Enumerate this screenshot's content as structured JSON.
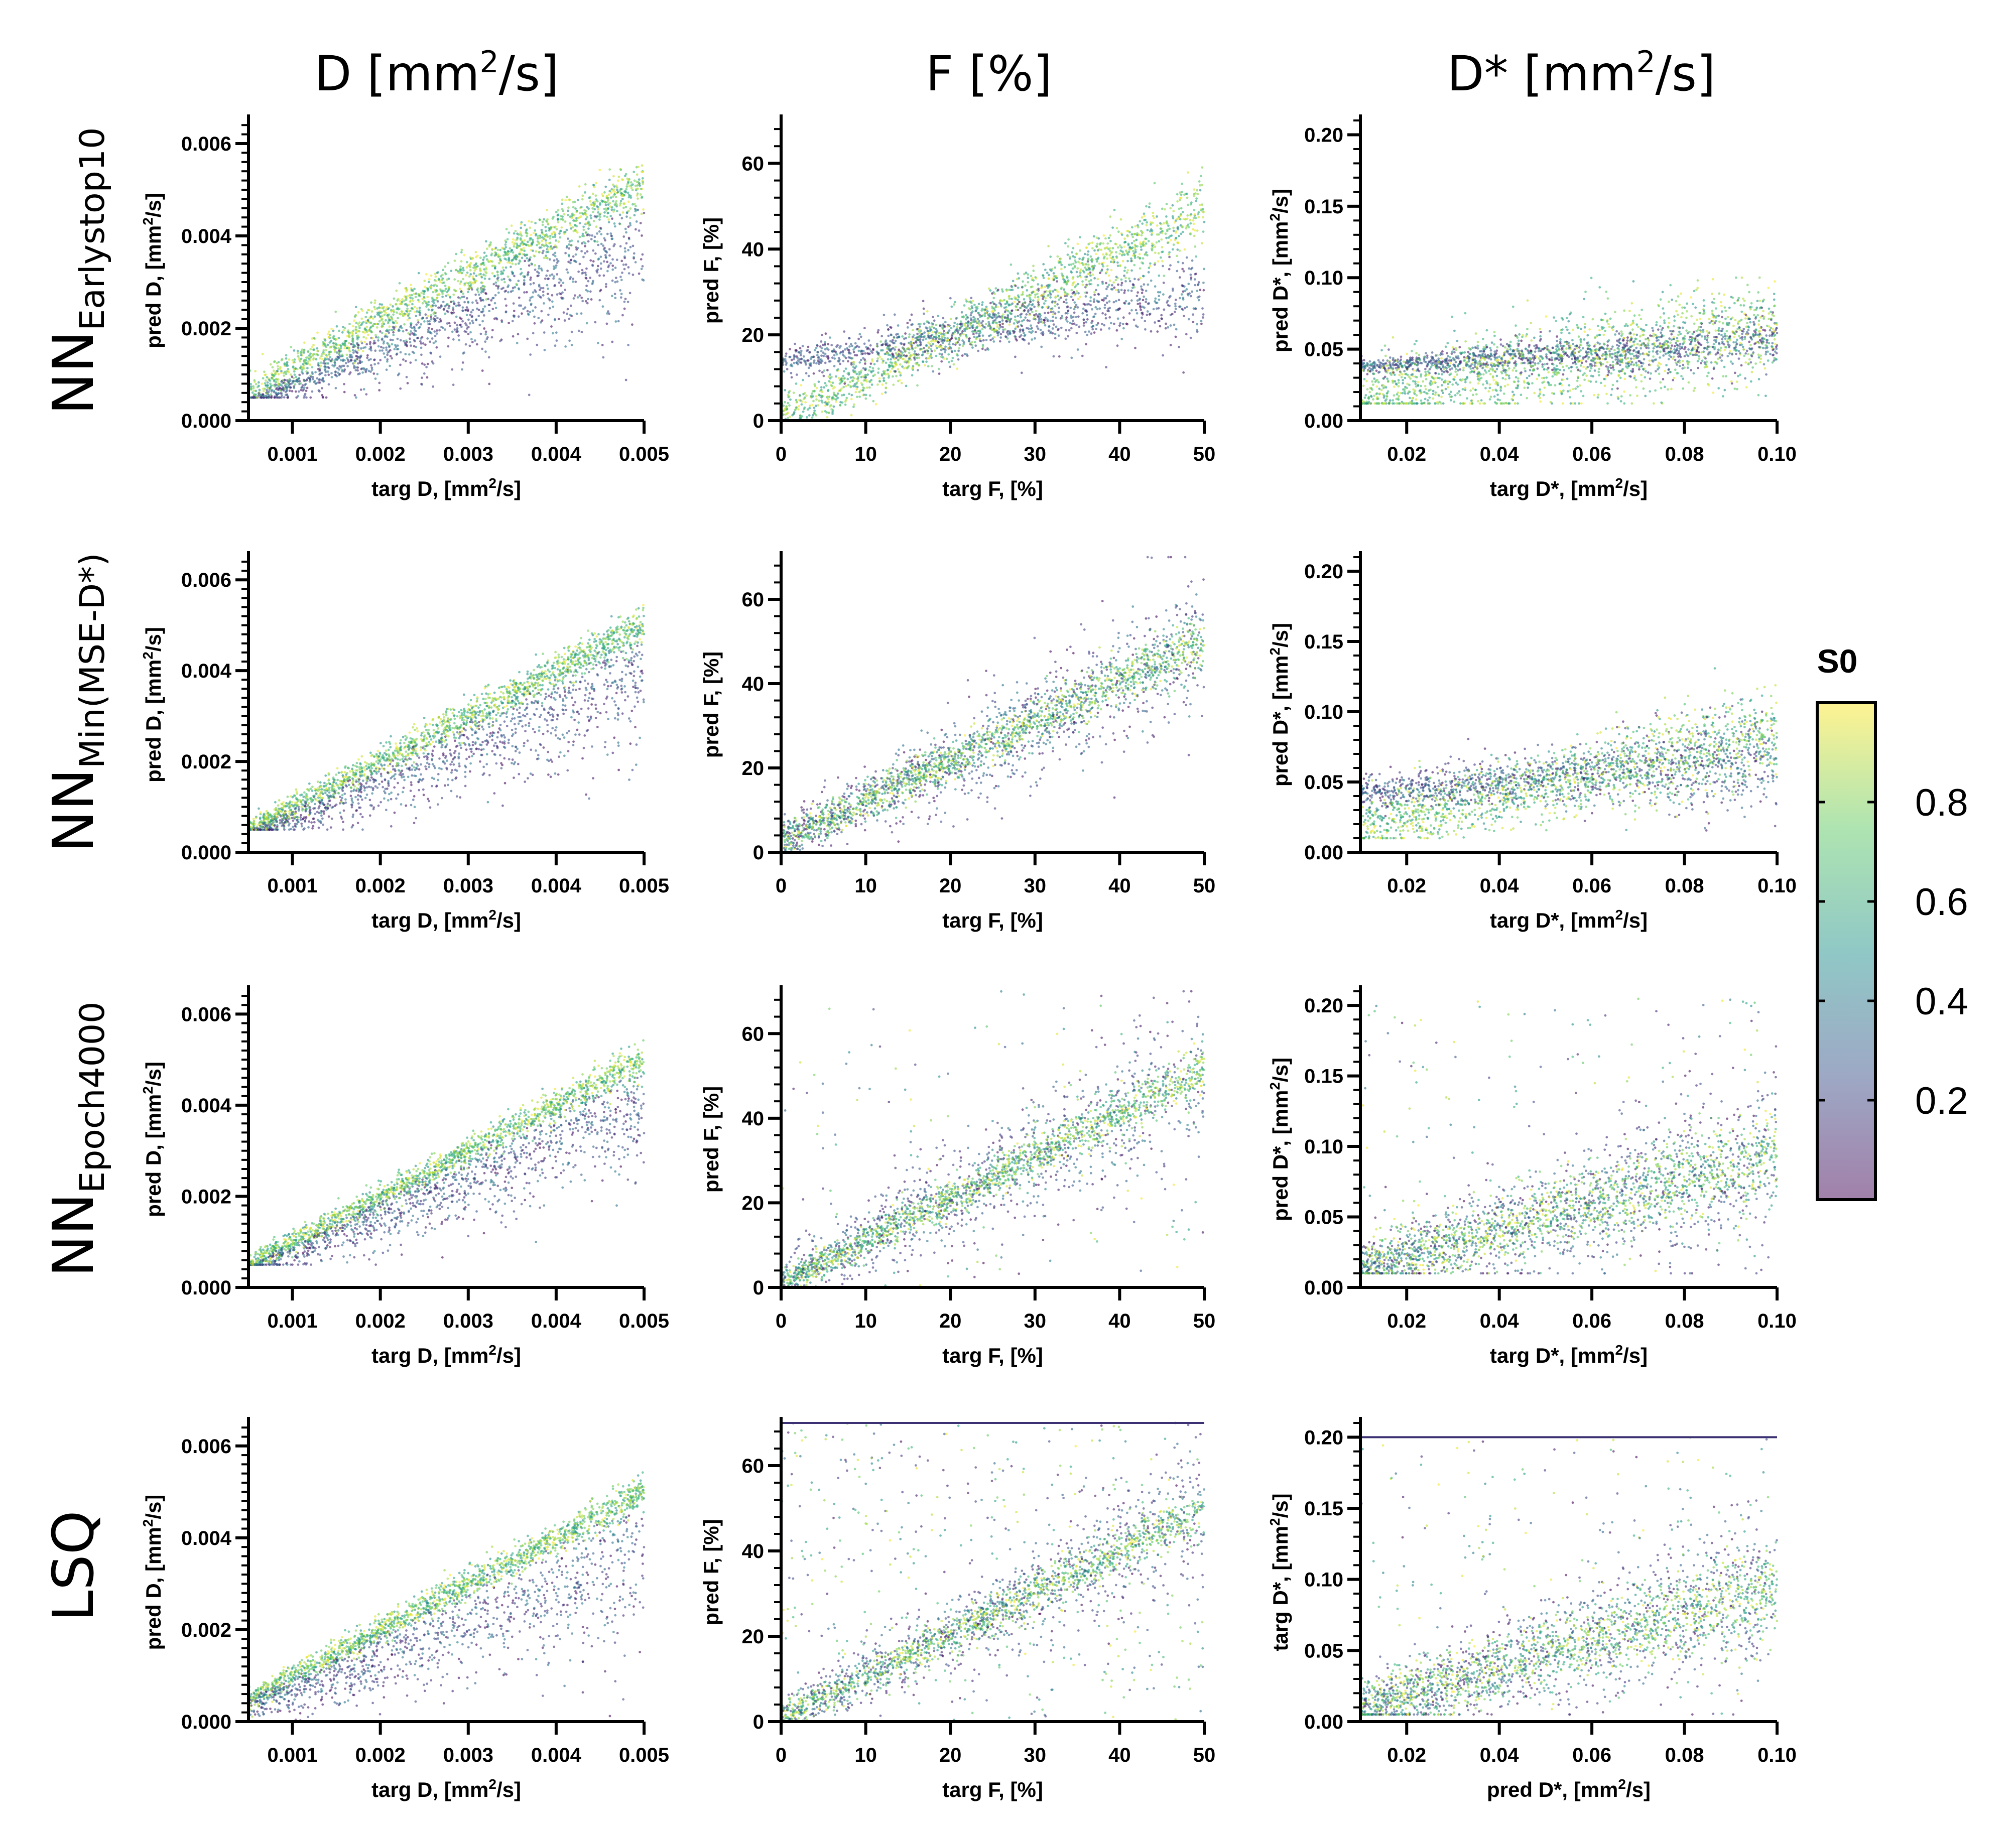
{
  "figure": {
    "column_titles": [
      {
        "main": "D [mm",
        "sup": "2",
        "tail": "/s]"
      },
      {
        "main": "F [%]",
        "sup": "",
        "tail": ""
      },
      {
        "main": "D* [mm",
        "sup": "2",
        "tail": "/s]"
      }
    ],
    "row_labels": [
      {
        "main": "NN",
        "sub": "Earlystop10"
      },
      {
        "main": "NN",
        "sub": "Min(MSE-D*)"
      },
      {
        "main": "NN",
        "sub": "Epoch4000"
      },
      {
        "main": "LSQ",
        "sub": ""
      }
    ],
    "colorbar": {
      "title": "S0",
      "range": [
        0.0,
        1.0
      ],
      "ticks": [
        0.2,
        0.4,
        0.6,
        0.8
      ],
      "tick_labels": [
        "0.2",
        "0.4",
        "0.6",
        "0.8"
      ],
      "colormap": "viridis (semi-transparent)",
      "colors": [
        "#440154",
        "#3b528b",
        "#21918c",
        "#5ec962",
        "#fde725"
      ]
    }
  },
  "chart_data": [
    {
      "type": "scatter",
      "row": 0,
      "col": 0,
      "method": "NN Earlystop10",
      "parameter": "D",
      "xlabel": {
        "pre": "targ D, [mm",
        "sup": "2",
        "post": "/s]"
      },
      "ylabel": {
        "pre": "pred D, [mm",
        "sup": "2",
        "post": "/s]"
      },
      "xlim": [
        0.0005,
        0.005
      ],
      "ylim": [
        0,
        0.0065
      ],
      "xticks": [
        0.001,
        0.002,
        0.003,
        0.004,
        0.005
      ],
      "xtick_labels": [
        "0.001",
        "0.002",
        "0.003",
        "0.004",
        "0.005"
      ],
      "yticks": [
        0,
        0.002,
        0.004,
        0.006
      ],
      "ytick_labels": [
        "0.000",
        "0.002",
        "0.004",
        "0.006"
      ],
      "yminor": 0.0002,
      "trend": {
        "slope": 1.0,
        "intercept": 0.0,
        "core_spread": 0.00018,
        "high_s0_bias": 0.0002,
        "low_s0_spread": 0.0011,
        "low_s0_bias": -0.0009,
        "outlier_frac": 0.0,
        "floor": 0.0005,
        "ceiling": null
      },
      "notes": "High-S0 points follow identity line with slight overestimation; low-S0 points underestimate at large D"
    },
    {
      "type": "scatter",
      "row": 0,
      "col": 1,
      "method": "NN Earlystop10",
      "parameter": "F",
      "xlabel": {
        "pre": "targ F, [%]",
        "sup": "",
        "post": ""
      },
      "ylabel": {
        "pre": "pred F, [%]",
        "sup": "",
        "post": ""
      },
      "xlim": [
        0,
        50
      ],
      "ylim": [
        0,
        70
      ],
      "xticks": [
        0,
        10,
        20,
        30,
        40,
        50
      ],
      "xtick_labels": [
        "0",
        "10",
        "20",
        "30",
        "40",
        "50"
      ],
      "yticks": [
        0,
        20,
        40,
        60
      ],
      "ytick_labels": [
        "0",
        "20",
        "40",
        "60"
      ],
      "yminor": 4,
      "trend": {
        "slope": 0.98,
        "intercept": 1.5,
        "core_spread": 2.5,
        "high_s0_bias": -1.5,
        "low_s0_regress_to": 20,
        "low_s0_spread": 5,
        "outlier_frac": 0.0,
        "floor": 0,
        "ceiling": null
      },
      "notes": "Low-S0 points regress toward ~20% at low targ F; spread grows at high F"
    },
    {
      "type": "scatter",
      "row": 0,
      "col": 2,
      "method": "NN Earlystop10",
      "parameter": "D*",
      "xlabel": {
        "pre": "targ D*, [mm",
        "sup": "2",
        "post": "/s]"
      },
      "ylabel": {
        "pre": "pred D*, [mm",
        "sup": "2",
        "post": "/s]"
      },
      "xlim": [
        0.01,
        0.1
      ],
      "ylim": [
        0,
        0.21
      ],
      "xticks": [
        0.02,
        0.04,
        0.06,
        0.08,
        0.1
      ],
      "xtick_labels": [
        "0.02",
        "0.04",
        "0.06",
        "0.08",
        "0.10"
      ],
      "yticks": [
        0,
        0.05,
        0.1,
        0.15,
        0.2
      ],
      "ytick_labels": [
        "0.00",
        "0.05",
        "0.10",
        "0.15",
        "0.20"
      ],
      "yminor": 0.01,
      "trend": {
        "slope": 0.55,
        "intercept": 0.012,
        "core_spread": 0.012,
        "high_s0_bias": 0,
        "low_s0_regress_to": 0.048,
        "low_s0_spread": 0.009,
        "outlier_frac": 0.0,
        "floor": 0.012,
        "ceiling": 0.1
      },
      "notes": "Strong regression toward ~0.05; low-S0 points nearly flat"
    },
    {
      "type": "scatter",
      "row": 1,
      "col": 0,
      "method": "NN Min(MSE-D*)",
      "parameter": "D",
      "xlabel": {
        "pre": "targ D, [mm",
        "sup": "2",
        "post": "/s]"
      },
      "ylabel": {
        "pre": "pred D, [mm",
        "sup": "2",
        "post": "/s]"
      },
      "xlim": [
        0.0005,
        0.005
      ],
      "ylim": [
        0,
        0.0065
      ],
      "xticks": [
        0.001,
        0.002,
        0.003,
        0.004,
        0.005
      ],
      "xtick_labels": [
        "0.001",
        "0.002",
        "0.003",
        "0.004",
        "0.005"
      ],
      "yticks": [
        0,
        0.002,
        0.004,
        0.006
      ],
      "ytick_labels": [
        "0.000",
        "0.002",
        "0.004",
        "0.006"
      ],
      "yminor": 0.0002,
      "trend": {
        "slope": 1.0,
        "intercept": 0.0,
        "core_spread": 0.00014,
        "high_s0_bias": 0.0,
        "low_s0_spread": 0.0012,
        "low_s0_bias": -0.0008,
        "outlier_frac": 0.0,
        "floor": 0.0005,
        "ceiling": null
      },
      "notes": "Tight identity band; low-S0 underestimation tail"
    },
    {
      "type": "scatter",
      "row": 1,
      "col": 1,
      "method": "NN Min(MSE-D*)",
      "parameter": "F",
      "xlabel": {
        "pre": "targ F, [%]",
        "sup": "",
        "post": ""
      },
      "ylabel": {
        "pre": "pred F, [%]",
        "sup": "",
        "post": ""
      },
      "xlim": [
        0,
        50
      ],
      "ylim": [
        0,
        70
      ],
      "xticks": [
        0,
        10,
        20,
        30,
        40,
        50
      ],
      "xtick_labels": [
        "0",
        "10",
        "20",
        "30",
        "40",
        "50"
      ],
      "yticks": [
        0,
        20,
        40,
        60
      ],
      "ytick_labels": [
        "0",
        "20",
        "40",
        "60"
      ],
      "yminor": 4,
      "trend": {
        "slope": 0.95,
        "intercept": 2.5,
        "core_spread": 2.0,
        "high_s0_bias": 0,
        "low_s0_regress_to": null,
        "low_s0_spread": 9,
        "outlier_frac": 0.0,
        "floor": 0,
        "ceiling": null
      },
      "notes": "Identity band with wide symmetric low-S0 scatter"
    },
    {
      "type": "scatter",
      "row": 1,
      "col": 2,
      "method": "NN Min(MSE-D*)",
      "parameter": "D*",
      "xlabel": {
        "pre": "targ D*, [mm",
        "sup": "2",
        "post": "/s]"
      },
      "ylabel": {
        "pre": "pred D*, [mm",
        "sup": "2",
        "post": "/s]"
      },
      "xlim": [
        0.01,
        0.1
      ],
      "ylim": [
        0,
        0.21
      ],
      "xticks": [
        0.02,
        0.04,
        0.06,
        0.08,
        0.1
      ],
      "xtick_labels": [
        "0.02",
        "0.04",
        "0.06",
        "0.08",
        "0.10"
      ],
      "yticks": [
        0,
        0.05,
        0.1,
        0.15,
        0.2
      ],
      "ytick_labels": [
        "0.00",
        "0.05",
        "0.10",
        "0.15",
        "0.20"
      ],
      "yminor": 0.01,
      "trend": {
        "slope": 0.72,
        "intercept": 0.012,
        "core_spread": 0.01,
        "high_s0_bias": 0,
        "low_s0_regress_to": 0.055,
        "low_s0_spread": 0.016,
        "outlier_frac": 0.0,
        "floor": 0.01,
        "ceiling": 0.14
      },
      "notes": "Moderate regression toward mean"
    },
    {
      "type": "scatter",
      "row": 2,
      "col": 0,
      "method": "NN Epoch4000",
      "parameter": "D",
      "xlabel": {
        "pre": "targ D, [mm",
        "sup": "2",
        "post": "/s]"
      },
      "ylabel": {
        "pre": "pred D, [mm",
        "sup": "2",
        "post": "/s]"
      },
      "xlim": [
        0.0005,
        0.005
      ],
      "ylim": [
        0,
        0.0065
      ],
      "xticks": [
        0.001,
        0.002,
        0.003,
        0.004,
        0.005
      ],
      "xtick_labels": [
        "0.001",
        "0.002",
        "0.003",
        "0.004",
        "0.005"
      ],
      "yticks": [
        0,
        0.002,
        0.004,
        0.006
      ],
      "ytick_labels": [
        "0.000",
        "0.002",
        "0.004",
        "0.006"
      ],
      "yminor": 0.0002,
      "trend": {
        "slope": 1.0,
        "intercept": 0.0,
        "core_spread": 0.00012,
        "high_s0_bias": 0.0,
        "low_s0_spread": 0.0012,
        "low_s0_bias": -0.0007,
        "outlier_frac": 0.0,
        "floor": 0.0005,
        "ceiling": null
      },
      "notes": "Tight identity band"
    },
    {
      "type": "scatter",
      "row": 2,
      "col": 1,
      "method": "NN Epoch4000",
      "parameter": "F",
      "xlabel": {
        "pre": "targ F, [%]",
        "sup": "",
        "post": ""
      },
      "ylabel": {
        "pre": "pred F, [%]",
        "sup": "",
        "post": ""
      },
      "xlim": [
        0,
        50
      ],
      "ylim": [
        0,
        70
      ],
      "xticks": [
        0,
        10,
        20,
        30,
        40,
        50
      ],
      "xtick_labels": [
        "0",
        "10",
        "20",
        "30",
        "40",
        "50"
      ],
      "yticks": [
        0,
        20,
        40,
        60
      ],
      "ytick_labels": [
        "0",
        "20",
        "40",
        "60"
      ],
      "yminor": 4,
      "trend": {
        "slope": 1.0,
        "intercept": 1.0,
        "core_spread": 1.8,
        "high_s0_bias": 0,
        "low_s0_regress_to": null,
        "low_s0_spread": 10,
        "outlier_frac": 0.06,
        "floor": 0,
        "ceiling": null
      },
      "notes": "Identity band, scattered outliers up to ~70%"
    },
    {
      "type": "scatter",
      "row": 2,
      "col": 2,
      "method": "NN Epoch4000",
      "parameter": "D*",
      "xlabel": {
        "pre": "targ D*, [mm",
        "sup": "2",
        "post": "/s]"
      },
      "ylabel": {
        "pre": "pred D*, [mm",
        "sup": "2",
        "post": "/s]"
      },
      "xlim": [
        0.01,
        0.1
      ],
      "ylim": [
        0,
        0.21
      ],
      "xticks": [
        0.02,
        0.04,
        0.06,
        0.08,
        0.1
      ],
      "xtick_labels": [
        "0.02",
        "0.04",
        "0.06",
        "0.08",
        "0.10"
      ],
      "yticks": [
        0,
        0.05,
        0.1,
        0.15,
        0.2
      ],
      "ytick_labels": [
        "0.00",
        "0.05",
        "0.10",
        "0.15",
        "0.20"
      ],
      "yminor": 0.01,
      "trend": {
        "slope": 0.9,
        "intercept": 0.005,
        "core_spread": 0.01,
        "high_s0_bias": 0,
        "low_s0_regress_to": null,
        "low_s0_spread": 0.03,
        "outlier_frac": 0.08,
        "floor": 0.01,
        "ceiling": 0.205
      },
      "notes": "Near-identity trend, wide spread with outliers up to 0.20"
    },
    {
      "type": "scatter",
      "row": 3,
      "col": 0,
      "method": "LSQ",
      "parameter": "D",
      "xlabel": {
        "pre": "targ D, [mm",
        "sup": "2",
        "post": "/s]"
      },
      "ylabel": {
        "pre": "pred D, [mm",
        "sup": "2",
        "post": "/s]"
      },
      "xlim": [
        0.0005,
        0.005
      ],
      "ylim": [
        0,
        0.0065
      ],
      "xticks": [
        0.001,
        0.002,
        0.003,
        0.004,
        0.005
      ],
      "xtick_labels": [
        "0.001",
        "0.002",
        "0.003",
        "0.004",
        "0.005"
      ],
      "yticks": [
        0,
        0.002,
        0.004,
        0.006
      ],
      "ytick_labels": [
        "0.000",
        "0.002",
        "0.004",
        "0.006"
      ],
      "yminor": 0.0002,
      "trend": {
        "slope": 1.0,
        "intercept": 0.0,
        "core_spread": 0.00012,
        "high_s0_bias": 0.0,
        "low_s0_spread": 0.0014,
        "low_s0_bias": -0.0011,
        "outlier_frac": 0.0,
        "floor": 0.0,
        "ceiling": null
      },
      "notes": "Identity band; broad low-S0 underestimation down to 0"
    },
    {
      "type": "scatter",
      "row": 3,
      "col": 1,
      "method": "LSQ",
      "parameter": "F",
      "xlabel": {
        "pre": "targ F, [%]",
        "sup": "",
        "post": ""
      },
      "ylabel": {
        "pre": "pred F, [%]",
        "sup": "",
        "post": ""
      },
      "xlim": [
        0,
        50
      ],
      "ylim": [
        0,
        70
      ],
      "xticks": [
        0,
        10,
        20,
        30,
        40,
        50
      ],
      "xtick_labels": [
        "0",
        "10",
        "20",
        "30",
        "40",
        "50"
      ],
      "yticks": [
        0,
        20,
        40,
        60
      ],
      "ytick_labels": [
        "0",
        "20",
        "40",
        "60"
      ],
      "yminor": 4,
      "trend": {
        "slope": 0.97,
        "intercept": 1.0,
        "core_spread": 1.8,
        "high_s0_bias": 0,
        "low_s0_regress_to": null,
        "low_s0_spread": 8,
        "outlier_frac": 0.18,
        "floor": 0,
        "ceiling": 70
      },
      "notes": "Fit bounds visible: points pile up at 0 and 70%"
    },
    {
      "type": "scatter",
      "row": 3,
      "col": 2,
      "method": "LSQ",
      "parameter": "D*",
      "xlabel": {
        "pre": "pred D*, [mm",
        "sup": "2",
        "post": "/s]"
      },
      "ylabel": {
        "pre": "targ D*, [mm",
        "sup": "2",
        "post": "/s]"
      },
      "xlim": [
        0.01,
        0.1
      ],
      "ylim": [
        0,
        0.21
      ],
      "xticks": [
        0.02,
        0.04,
        0.06,
        0.08,
        0.1
      ],
      "xtick_labels": [
        "0.02",
        "0.04",
        "0.06",
        "0.08",
        "0.10"
      ],
      "yticks": [
        0,
        0.05,
        0.1,
        0.15,
        0.2
      ],
      "ytick_labels": [
        "0.00",
        "0.05",
        "0.10",
        "0.15",
        "0.20"
      ],
      "yminor": 0.01,
      "trend": {
        "slope": 0.95,
        "intercept": 0.0,
        "core_spread": 0.01,
        "high_s0_bias": 0,
        "low_s0_regress_to": null,
        "low_s0_spread": 0.03,
        "outlier_frac": 0.1,
        "floor": 0.005,
        "ceiling": 0.2
      },
      "notes": "Axis labels swapped (x=pred, y=targ); fit bounds at 0.005 and 0.20"
    }
  ]
}
